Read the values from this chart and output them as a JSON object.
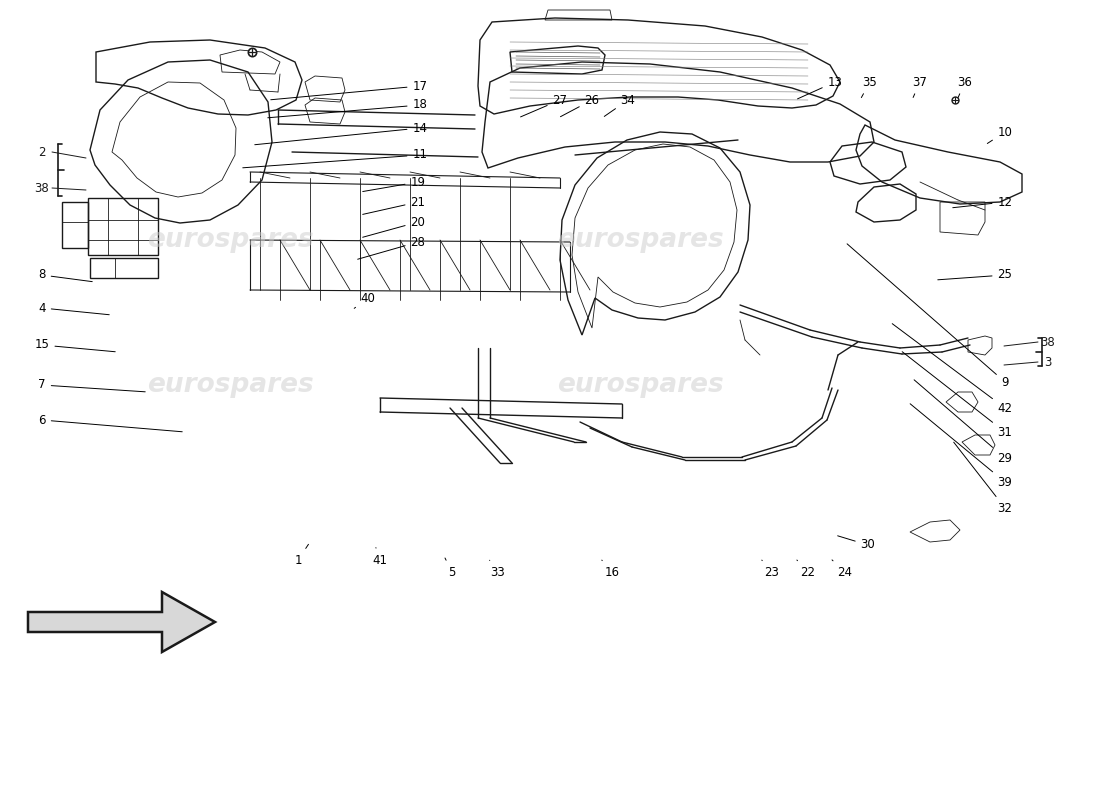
{
  "background_color": "#ffffff",
  "line_color": "#1a1a1a",
  "watermark_text": "eurospares",
  "font_size": 8.5,
  "callouts": [
    [
      17,
      420,
      714,
      268,
      700
    ],
    [
      18,
      420,
      695,
      265,
      682
    ],
    [
      14,
      420,
      672,
      252,
      655
    ],
    [
      11,
      420,
      645,
      240,
      632
    ],
    [
      27,
      560,
      700,
      518,
      682
    ],
    [
      26,
      592,
      700,
      558,
      682
    ],
    [
      34,
      628,
      700,
      602,
      682
    ],
    [
      13,
      835,
      718,
      795,
      700
    ],
    [
      35,
      870,
      718,
      860,
      700
    ],
    [
      37,
      920,
      718,
      912,
      700
    ],
    [
      36,
      965,
      718,
      957,
      700
    ],
    [
      10,
      1005,
      668,
      985,
      655
    ],
    [
      8,
      42,
      525,
      95,
      518
    ],
    [
      4,
      42,
      492,
      112,
      485
    ],
    [
      15,
      42,
      455,
      118,
      448
    ],
    [
      7,
      42,
      415,
      148,
      408
    ],
    [
      6,
      42,
      380,
      185,
      368
    ],
    [
      12,
      1005,
      598,
      950,
      592
    ],
    [
      25,
      1005,
      525,
      935,
      520
    ],
    [
      9,
      1005,
      418,
      845,
      558
    ],
    [
      42,
      1005,
      392,
      890,
      478
    ],
    [
      31,
      1005,
      368,
      900,
      450
    ],
    [
      29,
      1005,
      342,
      912,
      422
    ],
    [
      39,
      1005,
      318,
      908,
      398
    ],
    [
      32,
      1005,
      292,
      952,
      360
    ],
    [
      30,
      868,
      255,
      835,
      265
    ],
    [
      19,
      418,
      618,
      360,
      608
    ],
    [
      21,
      418,
      598,
      360,
      585
    ],
    [
      20,
      418,
      578,
      360,
      562
    ],
    [
      28,
      418,
      558,
      355,
      540
    ],
    [
      40,
      368,
      502,
      352,
      490
    ],
    [
      5,
      452,
      228,
      445,
      242
    ],
    [
      33,
      498,
      228,
      488,
      242
    ],
    [
      16,
      612,
      228,
      600,
      242
    ],
    [
      23,
      772,
      228,
      760,
      242
    ],
    [
      22,
      808,
      228,
      795,
      242
    ],
    [
      24,
      845,
      228,
      830,
      242
    ],
    [
      41,
      380,
      240,
      375,
      255
    ],
    [
      1,
      298,
      240,
      310,
      258
    ]
  ]
}
